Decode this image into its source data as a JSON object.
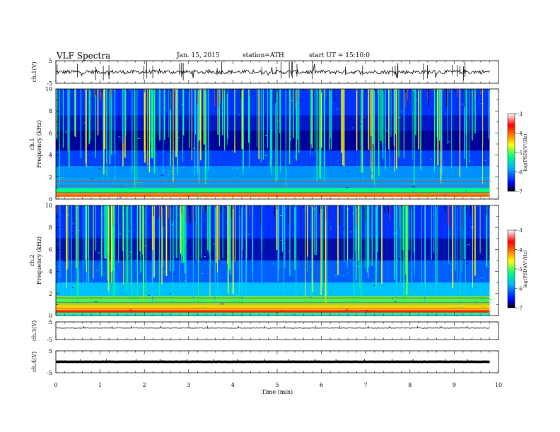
{
  "header": {
    "title": "VLF  Spectra",
    "date": "Jan. 15, 2015",
    "station": "station=ATH",
    "start": "start  UT  =   15:10:0"
  },
  "colors": {
    "spectrum": [
      "#000000",
      "#0000ff",
      "#00b4ff",
      "#00ff80",
      "#ffff00",
      "#ff8000",
      "#ff0000",
      "#ffffff"
    ]
  },
  "chart_data": [
    {
      "type": "line",
      "name": "ch1-waveform",
      "ylabel": "ch.1(V)",
      "ylim": [
        -5,
        5
      ],
      "yticks": [
        "5",
        "-5"
      ],
      "xlim": [
        0,
        10
      ],
      "baseline": 0
    },
    {
      "type": "heatmap",
      "name": "ch1-spectrogram",
      "ylabel": "ch.1\nFrequency  (kHz)",
      "ylim": [
        0,
        10
      ],
      "yticks": [
        "0",
        "2",
        "4",
        "6",
        "8",
        "10"
      ],
      "xlim": [
        0,
        10
      ],
      "data_end_min": 9.8,
      "colorbar": {
        "label": "log(PSD)(V²/Hz)",
        "range": [
          -7,
          -3
        ],
        "ticks": [
          "-3",
          "-4",
          "-5",
          "-6",
          "-7"
        ]
      }
    },
    {
      "type": "heatmap",
      "name": "ch2-spectrogram",
      "ylabel": "ch.2\nFrequency  (kHz)",
      "ylim": [
        0,
        10
      ],
      "yticks": [
        "0",
        "2",
        "4",
        "6",
        "8",
        "10"
      ],
      "xlim": [
        0,
        10
      ],
      "data_end_min": 9.8,
      "colorbar": {
        "label": "log(PSD)(V²/Hz)",
        "range": [
          -7,
          -3
        ],
        "ticks": [
          "-3",
          "-4",
          "-5",
          "-6",
          "-7"
        ]
      }
    },
    {
      "type": "line",
      "name": "ch3-waveform",
      "ylabel": "ch.3(V)",
      "ylim": [
        -5,
        5
      ],
      "yticks": [
        "5",
        "-5"
      ],
      "xlim": [
        0,
        10
      ],
      "baseline": 1.5
    },
    {
      "type": "line",
      "name": "ch4-waveform",
      "ylabel": "ch.4(V)",
      "ylim": [
        -5,
        5
      ],
      "yticks": [
        "5",
        "-5"
      ],
      "xlim": [
        0,
        10
      ],
      "baseline": 0
    }
  ],
  "xaxis": {
    "label": "Time  (min)",
    "ticks": [
      "0",
      "1",
      "2",
      "3",
      "4",
      "5",
      "6",
      "7",
      "8",
      "9",
      "10"
    ]
  }
}
